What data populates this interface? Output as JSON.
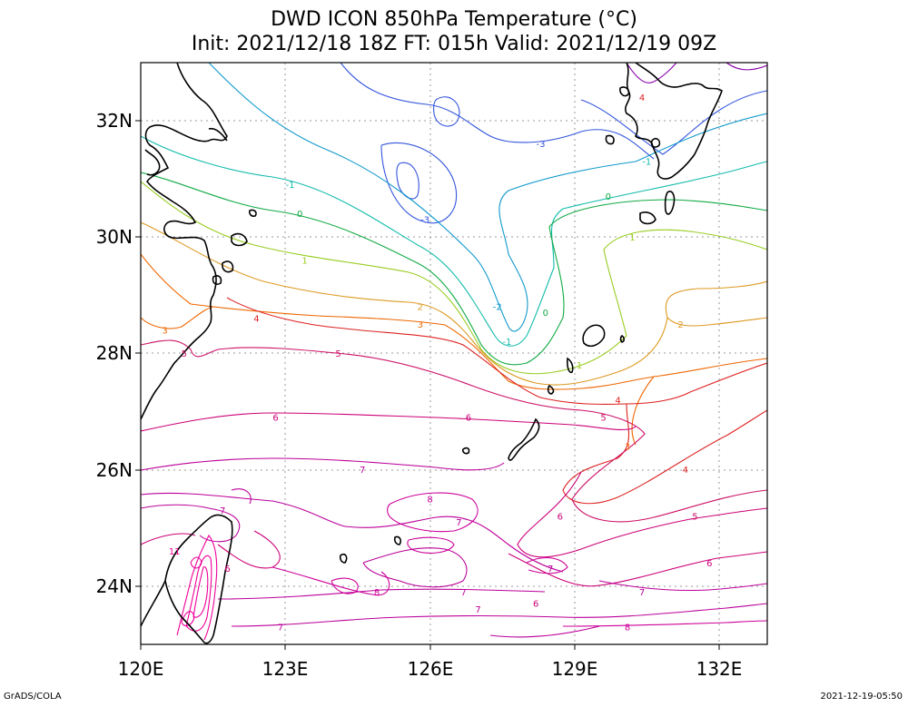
{
  "header": {
    "title": "DWD ICON 850hPa Temperature (°C)",
    "subtitle": "Init: 2021/12/18 18Z  FT: 015h  Valid: 2021/12/19 09Z"
  },
  "map": {
    "lon_range": [
      120,
      133
    ],
    "lat_range": [
      23,
      33
    ],
    "x_ticks": [
      "120E",
      "123E",
      "126E",
      "129E",
      "132E"
    ],
    "y_ticks": [
      "32N",
      "30N",
      "28N",
      "26N",
      "24N"
    ],
    "grid": "dotted",
    "contour_colors": {
      "-4": "#8800aa",
      "-3": "#3355dd",
      "-2": "#1199cc",
      "-1": "#11bbaa",
      "0": "#11aa44",
      "1": "#99cc22",
      "2": "#dd9922",
      "3": "#ee6600",
      "4": "#dd2222",
      "5": "#cc1166",
      "6": "#cc0077",
      "7": "#bb0099",
      "8": "#cc0099",
      "11": "#ee0099"
    },
    "contour_labels": [
      {
        "text": "-3",
        "lon": 125.9,
        "lat": 30.3
      },
      {
        "text": "-3",
        "lon": 128.3,
        "lat": 31.6
      },
      {
        "text": "-2",
        "lon": 127.4,
        "lat": 28.8
      },
      {
        "text": "-1",
        "lon": 123.1,
        "lat": 30.9
      },
      {
        "text": "-1",
        "lon": 127.6,
        "lat": 28.2
      },
      {
        "text": "-1",
        "lon": 130.5,
        "lat": 31.3
      },
      {
        "text": "0",
        "lon": 123.3,
        "lat": 30.4
      },
      {
        "text": "0",
        "lon": 128.4,
        "lat": 28.7
      },
      {
        "text": "0",
        "lon": 129.7,
        "lat": 30.7
      },
      {
        "text": "1",
        "lon": 123.4,
        "lat": 29.6
      },
      {
        "text": "1",
        "lon": 129.1,
        "lat": 27.8
      },
      {
        "text": "1",
        "lon": 130.2,
        "lat": 30.0
      },
      {
        "text": "2",
        "lon": 125.8,
        "lat": 28.8
      },
      {
        "text": "2",
        "lon": 131.2,
        "lat": 28.5
      },
      {
        "text": "3",
        "lon": 125.8,
        "lat": 28.5
      },
      {
        "text": "3",
        "lon": 120.5,
        "lat": 28.4
      },
      {
        "text": "3",
        "lon": 130.1,
        "lat": 26.4
      },
      {
        "text": "4",
        "lon": 122.4,
        "lat": 28.6
      },
      {
        "text": "4",
        "lon": 129.9,
        "lat": 27.2
      },
      {
        "text": "4",
        "lon": 131.3,
        "lat": 26.0
      },
      {
        "text": "5",
        "lon": 124.1,
        "lat": 28.0
      },
      {
        "text": "5",
        "lon": 120.9,
        "lat": 28.0
      },
      {
        "text": "5",
        "lon": 129.6,
        "lat": 26.9
      },
      {
        "text": "5",
        "lon": 131.5,
        "lat": 25.2
      },
      {
        "text": "6",
        "lon": 122.8,
        "lat": 26.9
      },
      {
        "text": "6",
        "lon": 126.8,
        "lat": 26.9
      },
      {
        "text": "6",
        "lon": 128.7,
        "lat": 25.2
      },
      {
        "text": "6",
        "lon": 121.8,
        "lat": 24.3
      },
      {
        "text": "6",
        "lon": 128.2,
        "lat": 23.7
      },
      {
        "text": "6",
        "lon": 131.8,
        "lat": 24.4
      },
      {
        "text": "7",
        "lon": 124.6,
        "lat": 26.0
      },
      {
        "text": "7",
        "lon": 121.7,
        "lat": 25.3
      },
      {
        "text": "7",
        "lon": 126.6,
        "lat": 25.1
      },
      {
        "text": "7",
        "lon": 128.5,
        "lat": 24.3
      },
      {
        "text": "7",
        "lon": 126.7,
        "lat": 23.9
      },
      {
        "text": "7",
        "lon": 127.0,
        "lat": 23.6
      },
      {
        "text": "7",
        "lon": 122.9,
        "lat": 23.3
      },
      {
        "text": "7",
        "lon": 130.4,
        "lat": 23.9
      },
      {
        "text": "8",
        "lon": 126.0,
        "lat": 25.5
      },
      {
        "text": "8",
        "lon": 124.9,
        "lat": 23.9
      },
      {
        "text": "8",
        "lon": 130.1,
        "lat": 23.3
      },
      {
        "text": "11",
        "lon": 120.7,
        "lat": 24.6
      },
      {
        "text": "4",
        "lon": 130.4,
        "lat": 32.4
      }
    ]
  },
  "footer": {
    "left": "GrADS/COLA",
    "right": "2021-12-19-05:50"
  }
}
